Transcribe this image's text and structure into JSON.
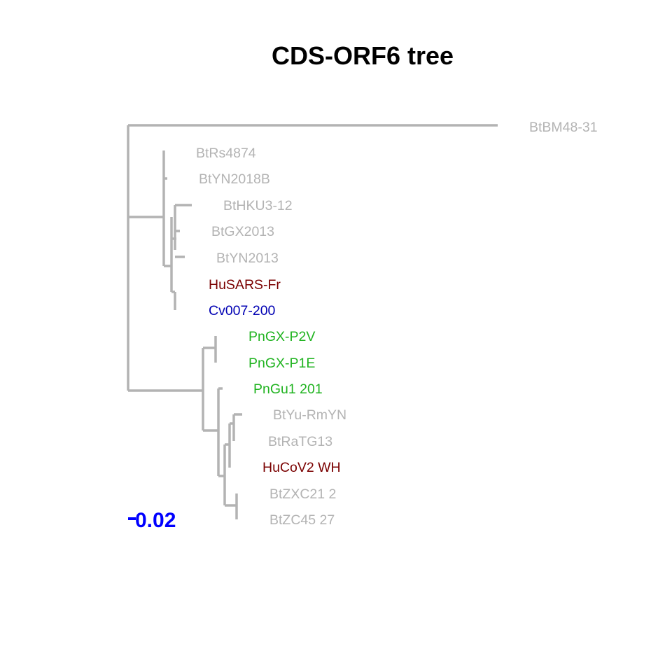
{
  "title": "CDS-ORF6 tree",
  "colors": {
    "branch": "#b3b3b3",
    "grey_label": "#b3b3b3",
    "human_label": "#7a0000",
    "civet_label": "#0000b3",
    "pangolin_label": "#1fb31f",
    "scale_label": "#0000ff"
  },
  "leaves": [
    {
      "name": "BtBM48-31",
      "group": "grey"
    },
    {
      "name": "BtRs4874",
      "group": "grey"
    },
    {
      "name": "BtYN2018B",
      "group": "grey"
    },
    {
      "name": "BtHKU3-12",
      "group": "grey"
    },
    {
      "name": "BtGX2013",
      "group": "grey"
    },
    {
      "name": "BtYN2013",
      "group": "grey"
    },
    {
      "name": "HuSARS-Fr",
      "group": "human"
    },
    {
      "name": "Cv007-200",
      "group": "civet"
    },
    {
      "name": "PnGX-P2V",
      "group": "pangolin"
    },
    {
      "name": "PnGX-P1E",
      "group": "pangolin"
    },
    {
      "name": "PnGu1 201",
      "group": "pangolin"
    },
    {
      "name": "BtYu-RmYN",
      "group": "grey"
    },
    {
      "name": "BtRaTG13",
      "group": "grey"
    },
    {
      "name": "HuCoV2 WH",
      "group": "human"
    },
    {
      "name": "BtZXC21 2",
      "group": "grey"
    },
    {
      "name": "BtZC45 27",
      "group": "grey"
    }
  ],
  "scale_bar": {
    "label": "0.02"
  }
}
